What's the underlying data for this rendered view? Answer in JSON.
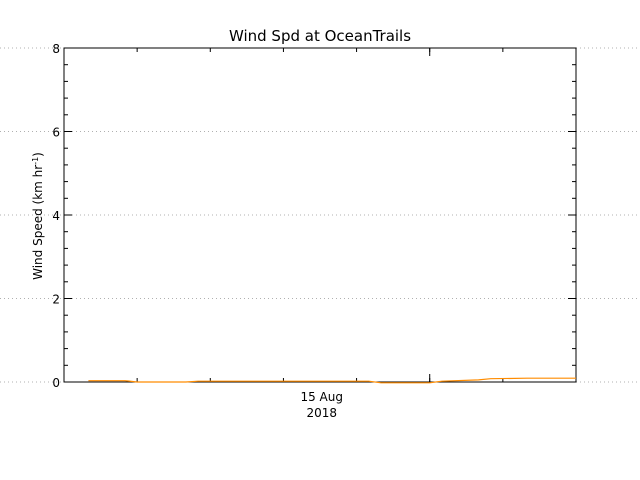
{
  "chart_data": {
    "type": "line",
    "title": "Wind Spd at OceanTrails",
    "ylabel_main": "Wind Speed (km hr",
    "ylabel_sup": "-1",
    "ylabel_close": ")",
    "ylim": [
      0,
      8
    ],
    "yticks": [
      0,
      2,
      4,
      6,
      8
    ],
    "xlim_hours": [
      -30,
      12
    ],
    "x_major_ticks": [
      {
        "hour": 0,
        "label": "15 Aug",
        "sublabel": "2018"
      }
    ],
    "grid_y": [
      0,
      2,
      4,
      6,
      8
    ],
    "series": [
      {
        "color": "#ff8c00",
        "x_hours": [
          -28,
          -25,
          -24,
          -20,
          -19,
          -15,
          -14,
          -10,
          -9,
          -5,
          -4,
          0,
          1,
          4,
          5,
          8,
          9,
          11,
          12
        ],
        "values": [
          0.03,
          0.03,
          0.0,
          0.0,
          0.02,
          0.02,
          0.02,
          0.02,
          0.02,
          0.02,
          -0.02,
          -0.02,
          0.02,
          0.05,
          0.08,
          0.09,
          0.09,
          0.09,
          0.09
        ]
      }
    ]
  }
}
